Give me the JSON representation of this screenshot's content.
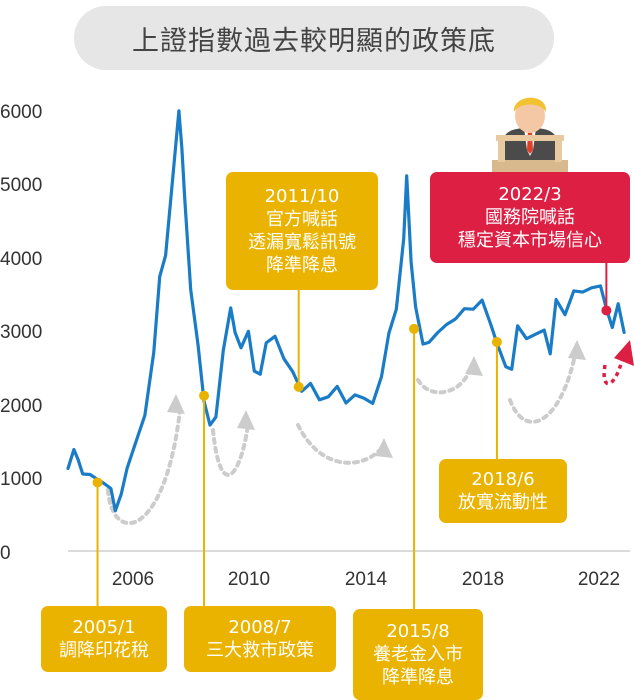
{
  "title": "上證指數過去較明顯的政策底",
  "colors": {
    "line": "#1a7cc7",
    "gold": "#e9b300",
    "red": "#dc1f43",
    "arrow_grey": "#cccccc",
    "pill": "#e6e6e6"
  },
  "chart_data": {
    "type": "line",
    "title": "上證指數過去較明顯的政策底",
    "xlabel": "",
    "ylabel": "",
    "xlim": [
      2003.9,
      2023.1
    ],
    "ylim": [
      0,
      6000
    ],
    "yticks": [
      "0",
      "1000",
      "2000",
      "3000",
      "4000",
      "5000",
      "6000"
    ],
    "xticks": [
      "2006",
      "2010",
      "2014",
      "2018",
      "2022"
    ],
    "series": [
      {
        "x": [
          2004.0,
          2004.2,
          2004.35,
          2004.5,
          2004.75,
          2005.0,
          2005.2,
          2005.45,
          2005.6,
          2005.8,
          2006.0,
          2006.3,
          2006.6,
          2006.9,
          2007.1,
          2007.3,
          2007.55,
          2007.75,
          2007.85,
          2007.95,
          2008.15,
          2008.4,
          2008.6,
          2008.8,
          2009.0,
          2009.25,
          2009.5,
          2009.65,
          2009.85,
          2010.1,
          2010.3,
          2010.5,
          2010.7,
          2011.0,
          2011.3,
          2011.6,
          2011.9,
          2012.2,
          2012.5,
          2012.8,
          2013.1,
          2013.4,
          2013.7,
          2014.0,
          2014.3,
          2014.6,
          2014.85,
          2015.1,
          2015.35,
          2015.45,
          2015.6,
          2015.75,
          2016.0,
          2016.2,
          2016.5,
          2016.8,
          2017.1,
          2017.4,
          2017.7,
          2018.0,
          2018.3,
          2018.5,
          2018.8,
          2019.0,
          2019.2,
          2019.5,
          2019.8,
          2020.1,
          2020.3,
          2020.5,
          2020.8,
          2021.1,
          2021.4,
          2021.7,
          2022.0,
          2022.2,
          2022.4,
          2022.6,
          2022.8
        ],
        "values": [
          1150,
          1400,
          1280,
          1050,
          1100,
          960,
          1000,
          820,
          640,
          800,
          1160,
          1500,
          1900,
          2700,
          3800,
          4000,
          5200,
          5950,
          5500,
          4800,
          3600,
          2800,
          2100,
          1700,
          1900,
          2700,
          3400,
          3000,
          2800,
          3000,
          2500,
          2400,
          2900,
          2900,
          2700,
          2400,
          2200,
          2300,
          2100,
          2100,
          2300,
          2000,
          2200,
          2050,
          2100,
          2400,
          3000,
          3300,
          4300,
          5100,
          4000,
          3300,
          2900,
          2800,
          3000,
          3100,
          3200,
          3300,
          3350,
          3400,
          3150,
          2800,
          2600,
          2500,
          3100,
          2900,
          3000,
          3000,
          2750,
          3400,
          3300,
          3500,
          3550,
          3600,
          3650,
          3300,
          3100,
          3350,
          3050
        ]
      }
    ],
    "annotations": [
      {
        "text": [
          "2005/1",
          "調降印花稅"
        ],
        "x": 2005.0,
        "value": 960
      },
      {
        "text": [
          "2008/7",
          "三大救市政策"
        ],
        "x": 2008.6,
        "value": 2140
      },
      {
        "text": [
          "2011/10",
          "官方喊話",
          "透漏寬鬆訊號",
          "降準降息"
        ],
        "x": 2011.8,
        "value": 2260
      },
      {
        "text": [
          "2015/8",
          "養老金入市",
          "降準降息"
        ],
        "x": 2015.7,
        "value": 3050
      },
      {
        "text": [
          "2018/6",
          "放寬流動性"
        ],
        "x": 2018.5,
        "value": 2870
      },
      {
        "text": [
          "2022/3",
          "國務院喊話",
          "穩定資本市場信心"
        ],
        "x": 2022.2,
        "value": 3300
      }
    ]
  }
}
